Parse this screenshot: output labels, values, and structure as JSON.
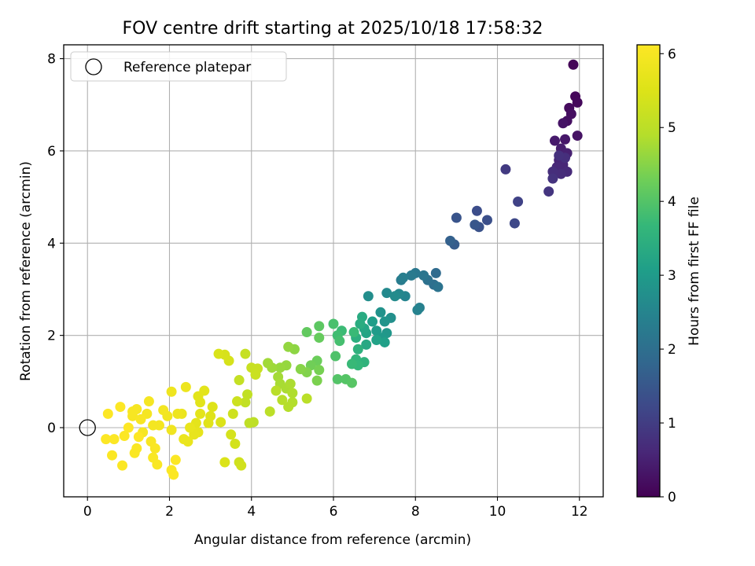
{
  "chart_data": {
    "type": "scatter",
    "title": "FOV centre drift starting at 2025/10/18 17:58:32",
    "xlabel": "Angular distance from reference (arcmin)",
    "ylabel": "Rotation from reference (arcmin)",
    "xlim": [
      -0.58,
      12.58
    ],
    "ylim": [
      -1.5,
      8.3
    ],
    "xticks": [
      0,
      2,
      4,
      6,
      8,
      10,
      12
    ],
    "yticks": [
      0,
      2,
      4,
      6,
      8
    ],
    "grid": true,
    "legend": {
      "placement": "top-left",
      "entries": [
        "Reference platepar"
      ]
    },
    "reference_point": {
      "x": 0,
      "y": 0,
      "label": "Reference platepar"
    },
    "colorbar": {
      "label": "Hours from first FF file",
      "range": [
        0,
        6.12
      ],
      "ticks": [
        0,
        1,
        2,
        3,
        4,
        5,
        6
      ],
      "colormap": "viridis"
    },
    "points": [
      [
        11.85,
        7.87,
        0.05
      ],
      [
        11.9,
        7.18,
        0.1
      ],
      [
        11.95,
        7.05,
        0.12
      ],
      [
        11.75,
        6.93,
        0.15
      ],
      [
        11.8,
        6.8,
        0.2
      ],
      [
        11.7,
        6.65,
        0.22
      ],
      [
        11.95,
        6.33,
        0.28
      ],
      [
        11.6,
        6.6,
        0.3
      ],
      [
        11.65,
        6.25,
        0.35
      ],
      [
        11.4,
        6.22,
        0.4
      ],
      [
        11.55,
        6.05,
        0.45
      ],
      [
        11.7,
        5.95,
        0.5
      ],
      [
        11.5,
        5.8,
        0.55
      ],
      [
        11.6,
        5.7,
        0.6
      ],
      [
        11.45,
        5.65,
        0.62
      ],
      [
        11.7,
        5.55,
        0.65
      ],
      [
        11.55,
        5.5,
        0.7
      ],
      [
        11.35,
        5.55,
        0.72
      ],
      [
        11.65,
        5.85,
        0.75
      ],
      [
        11.5,
        5.9,
        0.78
      ],
      [
        11.35,
        5.4,
        0.82
      ],
      [
        11.25,
        5.12,
        0.86
      ],
      [
        10.2,
        5.6,
        0.95
      ],
      [
        10.5,
        4.9,
        1.1
      ],
      [
        10.42,
        4.43,
        1.2
      ],
      [
        9.5,
        4.7,
        1.3
      ],
      [
        9.75,
        4.5,
        1.35
      ],
      [
        9.55,
        4.35,
        1.4
      ],
      [
        9.0,
        4.55,
        1.45
      ],
      [
        9.45,
        4.4,
        1.5
      ],
      [
        8.95,
        3.97,
        1.6
      ],
      [
        8.85,
        4.05,
        1.7
      ],
      [
        8.5,
        3.35,
        1.9
      ],
      [
        8.45,
        3.1,
        2.0
      ],
      [
        8.3,
        3.2,
        2.05
      ],
      [
        8.55,
        3.05,
        2.1
      ],
      [
        8.2,
        3.3,
        2.15
      ],
      [
        8.0,
        3.35,
        2.2
      ],
      [
        7.9,
        3.3,
        2.25
      ],
      [
        7.65,
        3.2,
        2.3
      ],
      [
        7.7,
        3.25,
        2.35
      ],
      [
        8.1,
        2.6,
        2.4
      ],
      [
        8.05,
        2.55,
        2.45
      ],
      [
        7.75,
        2.85,
        2.5
      ],
      [
        7.6,
        2.9,
        2.55
      ],
      [
        7.3,
        2.92,
        2.6
      ],
      [
        7.5,
        2.85,
        2.65
      ],
      [
        6.85,
        2.85,
        2.7
      ],
      [
        7.4,
        2.38,
        2.75
      ],
      [
        7.15,
        2.5,
        2.8
      ],
      [
        7.25,
        2.3,
        2.85
      ],
      [
        7.3,
        2.05,
        2.9
      ],
      [
        7.2,
        1.95,
        2.95
      ],
      [
        7.05,
        2.1,
        3.0
      ],
      [
        6.95,
        2.3,
        3.05
      ],
      [
        7.25,
        1.85,
        3.1
      ],
      [
        7.05,
        1.9,
        3.15
      ],
      [
        6.8,
        2.05,
        3.2
      ],
      [
        6.75,
        2.15,
        3.25
      ],
      [
        6.8,
        1.8,
        3.3
      ],
      [
        6.7,
        2.4,
        3.35
      ],
      [
        6.65,
        2.25,
        3.4
      ],
      [
        6.55,
        1.95,
        3.45
      ],
      [
        6.6,
        1.7,
        3.5
      ],
      [
        6.75,
        1.42,
        3.55
      ],
      [
        6.55,
        1.48,
        3.6
      ],
      [
        6.6,
        1.35,
        3.65
      ],
      [
        6.45,
        1.38,
        3.7
      ],
      [
        6.5,
        2.07,
        3.72
      ],
      [
        6.2,
        2.1,
        3.75
      ],
      [
        6.1,
        2.0,
        3.8
      ],
      [
        6.15,
        1.88,
        3.85
      ],
      [
        6.0,
        2.25,
        3.9
      ],
      [
        6.05,
        1.55,
        3.95
      ],
      [
        6.1,
        1.05,
        4.0
      ],
      [
        6.3,
        1.05,
        4.02
      ],
      [
        6.45,
        0.97,
        4.05
      ],
      [
        5.65,
        2.2,
        4.1
      ],
      [
        5.35,
        2.07,
        4.15
      ],
      [
        5.65,
        1.95,
        4.2
      ],
      [
        5.6,
        1.45,
        4.25
      ],
      [
        5.45,
        1.35,
        4.3
      ],
      [
        5.65,
        1.25,
        4.35
      ],
      [
        5.6,
        1.02,
        4.4
      ],
      [
        5.35,
        1.2,
        4.45
      ],
      [
        5.2,
        1.27,
        4.5
      ],
      [
        5.05,
        1.7,
        4.55
      ],
      [
        4.9,
        1.75,
        4.6
      ],
      [
        4.85,
        1.35,
        4.62
      ],
      [
        4.7,
        1.3,
        4.65
      ],
      [
        4.5,
        1.3,
        4.7
      ],
      [
        4.4,
        1.4,
        4.72
      ],
      [
        4.65,
        1.1,
        4.75
      ],
      [
        4.7,
        0.95,
        4.78
      ],
      [
        4.85,
        0.85,
        4.8
      ],
      [
        4.95,
        0.95,
        4.82
      ],
      [
        5.0,
        0.75,
        4.85
      ],
      [
        5.0,
        0.55,
        4.88
      ],
      [
        4.9,
        0.45,
        4.9
      ],
      [
        4.75,
        0.6,
        4.92
      ],
      [
        4.6,
        0.8,
        4.95
      ],
      [
        5.35,
        0.63,
        4.97
      ],
      [
        4.45,
        0.35,
        5.0
      ],
      [
        4.05,
        0.12,
        5.02
      ],
      [
        3.95,
        0.1,
        5.05
      ],
      [
        3.9,
        0.72,
        5.08
      ],
      [
        3.85,
        0.55,
        5.1
      ],
      [
        3.7,
        1.03,
        5.12
      ],
      [
        3.85,
        1.6,
        5.15
      ],
      [
        4.0,
        1.3,
        5.18
      ],
      [
        4.15,
        1.28,
        5.2
      ],
      [
        4.1,
        1.15,
        5.22
      ],
      [
        3.65,
        0.57,
        5.25
      ],
      [
        3.55,
        0.3,
        5.28
      ],
      [
        3.7,
        -0.75,
        5.3
      ],
      [
        3.75,
        -0.82,
        5.32
      ],
      [
        3.6,
        -0.35,
        5.35
      ],
      [
        3.5,
        -0.15,
        5.38
      ],
      [
        3.45,
        1.45,
        5.4
      ],
      [
        3.35,
        1.58,
        5.42
      ],
      [
        3.2,
        1.6,
        5.45
      ],
      [
        3.35,
        -0.75,
        5.48
      ],
      [
        3.25,
        0.12,
        5.5
      ],
      [
        3.05,
        0.45,
        5.52
      ],
      [
        3.0,
        0.25,
        5.55
      ],
      [
        2.95,
        0.1,
        5.58
      ],
      [
        2.75,
        0.55,
        5.6
      ],
      [
        2.7,
        0.68,
        5.62
      ],
      [
        2.85,
        0.8,
        5.63
      ],
      [
        2.75,
        0.3,
        5.65
      ],
      [
        2.65,
        0.1,
        5.67
      ],
      [
        2.7,
        -0.1,
        5.7
      ],
      [
        2.6,
        -0.15,
        5.72
      ],
      [
        2.5,
        0.0,
        5.74
      ],
      [
        2.45,
        -0.3,
        5.76
      ],
      [
        2.35,
        -0.25,
        5.78
      ],
      [
        2.3,
        0.3,
        5.8
      ],
      [
        2.4,
        0.88,
        5.82
      ],
      [
        2.2,
        0.3,
        5.84
      ],
      [
        2.05,
        0.78,
        5.86
      ],
      [
        2.05,
        -0.05,
        5.88
      ],
      [
        1.95,
        0.25,
        5.9
      ],
      [
        1.85,
        0.38,
        5.92
      ],
      [
        1.75,
        0.05,
        5.94
      ],
      [
        1.6,
        0.05,
        5.95
      ],
      [
        1.5,
        0.57,
        5.96
      ],
      [
        1.45,
        0.3,
        5.97
      ],
      [
        1.35,
        -0.1,
        5.98
      ],
      [
        1.2,
        0.4,
        5.99
      ],
      [
        1.1,
        0.25,
        6.0
      ],
      [
        1.1,
        0.35,
        6.01
      ],
      [
        1.3,
        0.18,
        6.02
      ],
      [
        1.55,
        -0.3,
        6.03
      ],
      [
        1.65,
        -0.45,
        6.04
      ],
      [
        1.6,
        -0.65,
        6.05
      ],
      [
        1.7,
        -0.8,
        6.05
      ],
      [
        1.2,
        -0.45,
        6.06
      ],
      [
        1.15,
        -0.55,
        6.07
      ],
      [
        2.05,
        -0.92,
        6.07
      ],
      [
        2.1,
        -1.02,
        6.08
      ],
      [
        2.15,
        -0.7,
        6.08
      ],
      [
        0.85,
        -0.82,
        6.09
      ],
      [
        0.6,
        -0.6,
        6.09
      ],
      [
        0.45,
        -0.25,
        6.1
      ],
      [
        0.65,
        -0.25,
        6.1
      ],
      [
        0.9,
        -0.18,
        6.11
      ],
      [
        0.5,
        0.3,
        6.11
      ],
      [
        0.8,
        0.45,
        6.11
      ],
      [
        1.0,
        0.0,
        6.12
      ],
      [
        1.25,
        -0.2,
        6.12
      ]
    ]
  }
}
